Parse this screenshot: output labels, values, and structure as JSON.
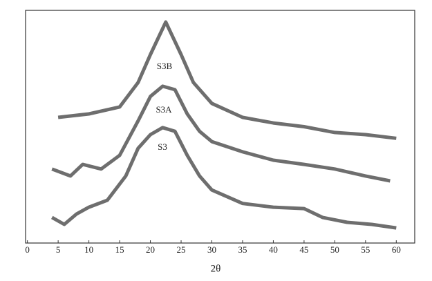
{
  "chart_data": {
    "type": "line",
    "xlabel": "2θ",
    "xlim": [
      -0.3,
      63
    ],
    "xticks": [
      0,
      5,
      10,
      15,
      20,
      25,
      30,
      35,
      40,
      45,
      50,
      55,
      60
    ],
    "ylim": [
      0,
      100
    ],
    "series": [
      {
        "name": "S3B",
        "color": "#555555",
        "x": [
          5,
          10,
          15,
          18,
          20,
          22.5,
          25,
          27,
          30,
          35,
          40,
          45,
          50,
          55,
          60
        ],
        "values": [
          54,
          55.5,
          58.5,
          69,
          81,
          95,
          81,
          69,
          60,
          54,
          51.6,
          50,
          47.5,
          46.6,
          45
        ]
      },
      {
        "name": "S3A",
        "color": "#555555",
        "x": [
          4,
          7,
          9,
          12,
          15,
          18,
          20,
          22,
          24,
          26,
          28,
          30,
          35,
          40,
          45,
          50,
          55,
          59
        ],
        "values": [
          31.8,
          28.8,
          33.8,
          31.8,
          37.7,
          52.5,
          63,
          67.4,
          65.9,
          55.5,
          48,
          43.6,
          39.2,
          35.6,
          33.8,
          31.8,
          28.8,
          26.7
        ]
      },
      {
        "name": "S3",
        "color": "#555555",
        "x": [
          4,
          6,
          8,
          10,
          13,
          16,
          18,
          20,
          22,
          24,
          26,
          28,
          30,
          35,
          40,
          45,
          48,
          52,
          56,
          60
        ],
        "values": [
          11,
          8,
          12.5,
          15.4,
          18.4,
          28.8,
          40.7,
          46.6,
          49.6,
          48,
          37.7,
          28.8,
          22.8,
          17,
          15.4,
          14.8,
          11,
          8.9,
          8,
          6.5
        ]
      }
    ]
  }
}
